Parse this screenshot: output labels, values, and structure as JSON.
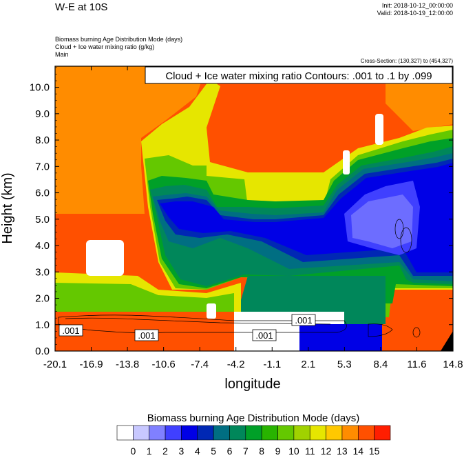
{
  "header": {
    "title": "W-E at 10S",
    "init": "Init: 2018-10-12_00:00:00",
    "valid": "Valid: 2018-10-19_12:00:00",
    "subtitles": [
      "Biomass burning Age Distribution Mode   (days)",
      "Cloud + Ice water mixing ratio   (g/kg)",
      "Main"
    ],
    "cross_section": "Cross-Section: (130,327) to (454,327)"
  },
  "chart_data": {
    "type": "heatmap",
    "title": "W-E at 10S",
    "contour_label": "Cloud + Ice water mixing ratio Contours: .001 to .1 by .099",
    "xlabel": "longitude",
    "ylabel": "Height (km)",
    "x_ticks": [
      "-20.1",
      "-16.9",
      "-13.8",
      "-10.6",
      "-7.4",
      "-4.2",
      "-1.1",
      "2.1",
      "5.3",
      "8.4",
      "11.6",
      "14.8"
    ],
    "y_ticks": [
      "0.0",
      "1.0",
      "2.0",
      "3.0",
      "4.0",
      "5.0",
      "6.0",
      "7.0",
      "8.0",
      "9.0",
      "10.0"
    ],
    "xlim": [
      -20.1,
      14.8
    ],
    "ylim": [
      0.0,
      10.8
    ],
    "contour_labels": [
      ".001",
      ".001",
      ".001",
      ".001"
    ],
    "colorbar": {
      "label": "Biomass burning Age Distribution Mode  (days)",
      "ticks": [
        "0",
        "1",
        "2",
        "3",
        "4",
        "5",
        "6",
        "7",
        "8",
        "9",
        "10",
        "11",
        "12",
        "13",
        "14",
        "15"
      ],
      "colors": [
        "#ffffff",
        "#c8c8ff",
        "#8080ff",
        "#4040ff",
        "#0000e6",
        "#0028b4",
        "#006e82",
        "#00875a",
        "#00a028",
        "#28b400",
        "#64c800",
        "#a0d200",
        "#e6e600",
        "#ffc800",
        "#ff8c00",
        "#ff5000",
        "#ff1e00"
      ]
    }
  }
}
